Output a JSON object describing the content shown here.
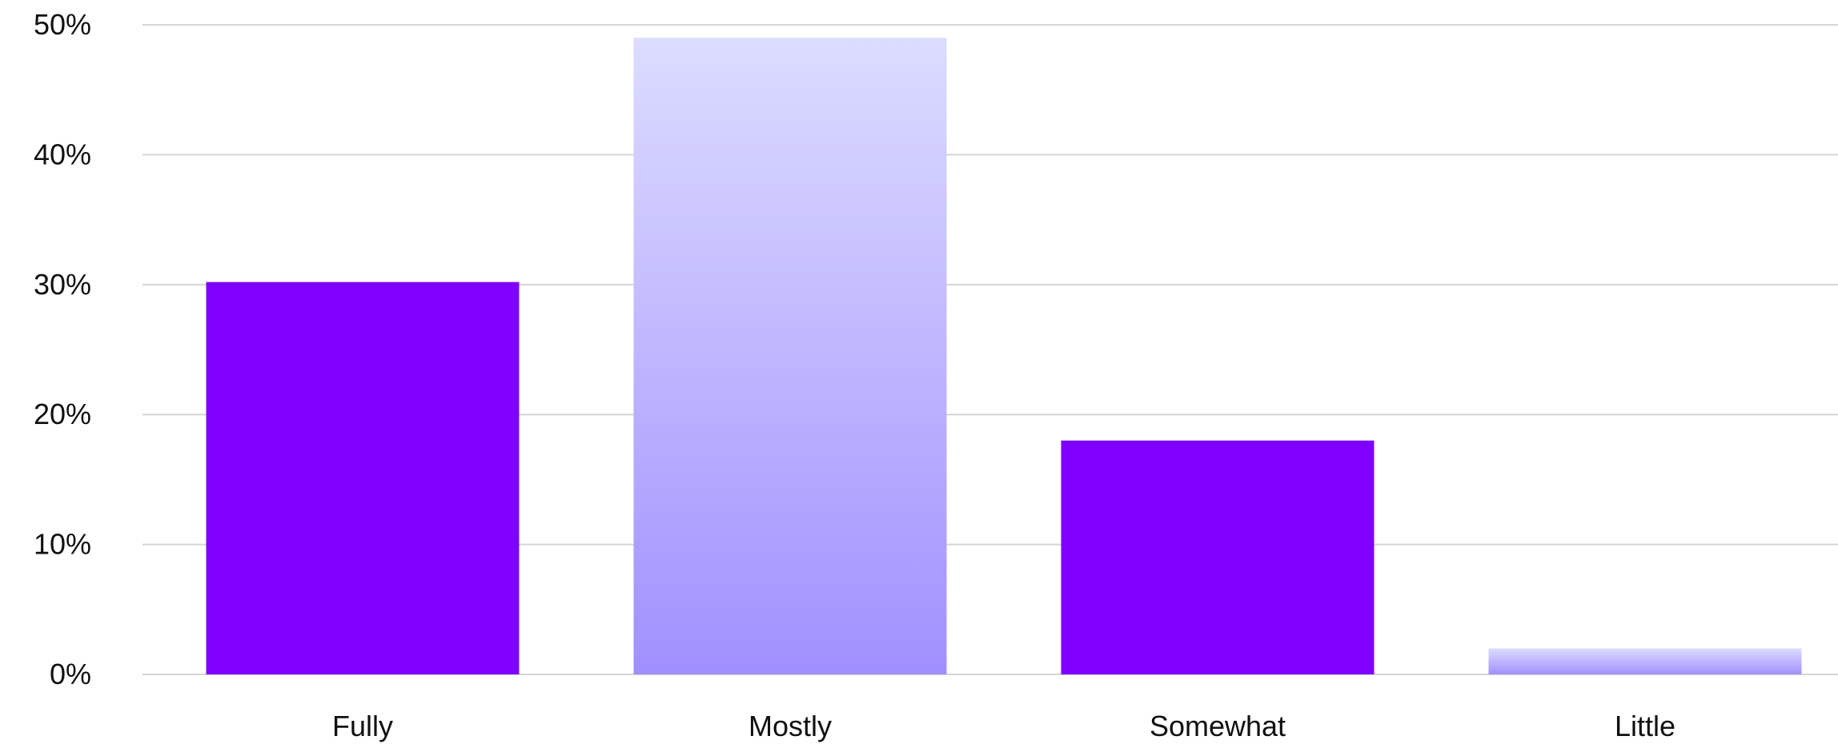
{
  "chart_data": {
    "type": "bar",
    "categories": [
      "Fully",
      "Mostly",
      "Somewhat",
      "Little"
    ],
    "values": [
      30.2,
      49,
      18,
      2
    ],
    "value_format": "percent",
    "ylim": [
      0,
      50
    ],
    "yticks": [
      0,
      10,
      20,
      30,
      40,
      50
    ],
    "ytick_labels": [
      "0%",
      "10%",
      "20%",
      "30%",
      "40%",
      "50%"
    ],
    "grid": true,
    "title": "",
    "xlabel": "",
    "ylabel": "",
    "bar_styles": [
      "solid",
      "gradient",
      "solid",
      "gradient"
    ],
    "colors": {
      "solid": "#7f00ff",
      "gradient_top": "#dcdcff",
      "gradient_bottom": "#a090ff",
      "grid": "#d4d4d4",
      "text": "#111111"
    }
  }
}
